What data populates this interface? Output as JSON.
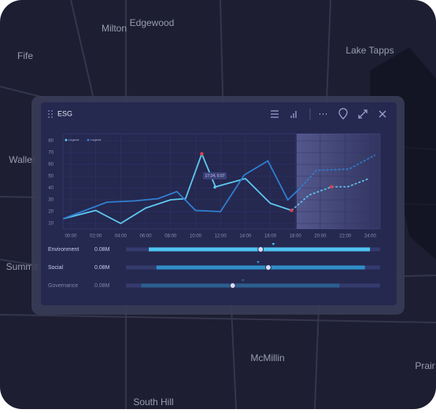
{
  "map": {
    "labels": [
      "Milton",
      "Edgewood",
      "Fife",
      "Lake Tapps",
      "Waller",
      "Summit",
      "McMillin",
      "South Hill",
      "Prair"
    ]
  },
  "panel": {
    "title": "ESG"
  },
  "chart_data": {
    "type": "line",
    "annotation": "17:24, 0.07",
    "xlim": [
      -0.63,
      24.8
    ],
    "ylim": [
      5,
      85
    ],
    "xticks": [
      {
        "value": 0,
        "label": "00:00"
      },
      {
        "value": 2,
        "label": "02:00"
      },
      {
        "value": 4,
        "label": "04:00"
      },
      {
        "value": 6,
        "label": "06:00"
      },
      {
        "value": 8,
        "label": "08:00"
      },
      {
        "value": 10,
        "label": "10:00"
      },
      {
        "value": 12,
        "label": "12:00"
      },
      {
        "value": 14,
        "label": "14:00"
      },
      {
        "value": 16,
        "label": "16:00"
      },
      {
        "value": 18,
        "label": "18:00"
      },
      {
        "value": 20,
        "label": "20:00"
      },
      {
        "value": 22,
        "label": "22:00"
      },
      {
        "value": 24,
        "label": "24:00"
      }
    ],
    "yticks": [
      10,
      20,
      30,
      40,
      50,
      60,
      70,
      80
    ],
    "forecast_start": 18.1,
    "grid": true,
    "series": [
      {
        "name": "Legend",
        "color": "#5ec8f0",
        "x": [
          -0.6,
          2,
          4,
          6,
          8,
          9.2,
          10.5,
          11.6,
          14,
          16,
          17.7
        ],
        "values": [
          14,
          21,
          10,
          23,
          30,
          31,
          69,
          41,
          48,
          27,
          21
        ],
        "forecast_x": [
          17.7,
          19.1,
          20.9,
          22.2,
          23.9
        ],
        "forecast_values": [
          21,
          34,
          41,
          41,
          48
        ]
      },
      {
        "name": "Legend",
        "color": "#2f7fd1",
        "x": [
          -0.6,
          2.9,
          5,
          7,
          8.5,
          10,
          12,
          13.9,
          15.8,
          17.4,
          18.3
        ],
        "values": [
          14,
          28,
          29,
          31,
          37,
          21,
          20,
          51,
          63,
          30,
          39
        ],
        "forecast_x": [
          18.3,
          19.7,
          22.3,
          24.4
        ],
        "forecast_values": [
          39,
          55,
          56,
          68
        ]
      }
    ],
    "highlights": [
      {
        "x": 10.5,
        "value": 69
      },
      {
        "x": 17.7,
        "value": 21
      },
      {
        "x": 20.9,
        "value": 41
      }
    ]
  },
  "sliders": [
    {
      "label": "Environment",
      "amount": "0.08M",
      "range": [
        9,
        96
      ],
      "value": 53,
      "target": 58,
      "color": "#4fc3f0"
    },
    {
      "label": "Social",
      "amount": "0.08M",
      "range": [
        12,
        94
      ],
      "value": 56,
      "target": 52,
      "color": "#2f8fc8"
    },
    {
      "label": "Governance",
      "amount": "0.08M",
      "range": [
        6,
        84
      ],
      "value": 42,
      "target": 46,
      "color": "#2c5f8f"
    }
  ]
}
